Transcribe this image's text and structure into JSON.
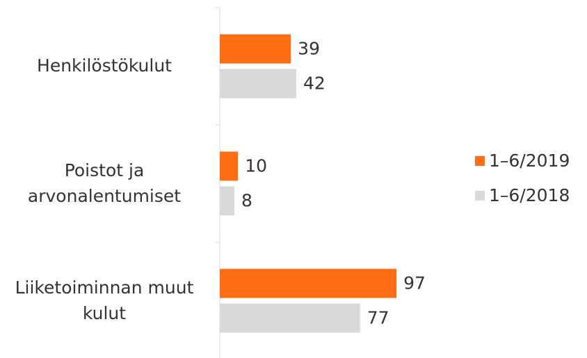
{
  "chart_data": {
    "type": "hbar",
    "categories": [
      "Henkilöstökulut",
      "Poistot ja arvonalentumiset",
      "Liiketoiminnan muut kulut"
    ],
    "series": [
      {
        "name": "1–6/2019",
        "color": "#ff6d14",
        "values": [
          39,
          10,
          97
        ]
      },
      {
        "name": "1–6/2018",
        "color": "#d9d9d9",
        "values": [
          42,
          8,
          77
        ]
      }
    ],
    "xlim": [
      0,
      100
    ],
    "legend": "right"
  }
}
